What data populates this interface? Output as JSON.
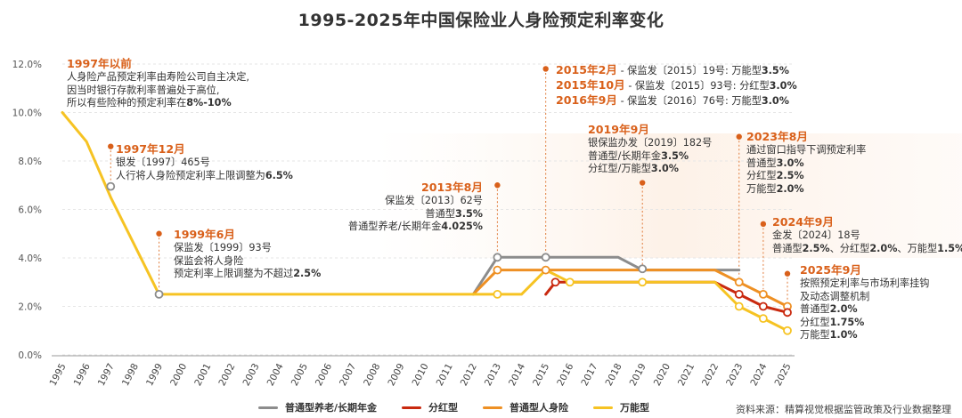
{
  "chart_data": {
    "type": "line",
    "title": "1995-2025年中国保险业人身险预定利率变化",
    "x": [
      "1995",
      "1996",
      "1997",
      "1998",
      "1999",
      "2000",
      "2001",
      "2002",
      "2003",
      "2004",
      "2005",
      "2006",
      "2007",
      "2008",
      "2009",
      "2010",
      "2011",
      "2012",
      "2013",
      "2014",
      "2015",
      "2016",
      "2017",
      "2018",
      "2019",
      "2020",
      "2021",
      "2022",
      "2023",
      "2024",
      "2025"
    ],
    "y_ticks": [
      "0.0%",
      "2.0%",
      "4.0%",
      "6.0%",
      "8.0%",
      "10.0%",
      "12.0%"
    ],
    "ylim": [
      0,
      12
    ],
    "series": [
      {
        "name": "普通型养老/长期年金",
        "color": "#8c8c8c",
        "points": [
          [
            2012,
            2.5
          ],
          [
            2013,
            4.025
          ],
          [
            2015,
            4.025
          ],
          [
            2018,
            4.025
          ],
          [
            2019,
            3.5
          ],
          [
            2022,
            3.5
          ],
          [
            2023,
            3.5
          ]
        ]
      },
      {
        "name": "分红型",
        "color": "#c9290f",
        "points": [
          [
            2015,
            2.5
          ],
          [
            2015.4,
            3.0
          ],
          [
            2016,
            3.0
          ],
          [
            2019,
            3.0
          ],
          [
            2022,
            3.0
          ],
          [
            2023,
            2.5
          ],
          [
            2024,
            2.0
          ],
          [
            2025,
            1.75
          ]
        ]
      },
      {
        "name": "普通型人身险",
        "color": "#ee9024",
        "points": [
          [
            2012,
            2.5
          ],
          [
            2013,
            3.5
          ],
          [
            2015,
            3.5
          ],
          [
            2022,
            3.5
          ],
          [
            2023,
            3.0
          ],
          [
            2024,
            2.5
          ],
          [
            2025,
            2.0
          ]
        ]
      },
      {
        "name": "万能型",
        "color": "#f6c323",
        "points": [
          [
            1995,
            10.0
          ],
          [
            1996,
            8.8
          ],
          [
            1997,
            6.5
          ],
          [
            1999,
            2.5
          ],
          [
            2012,
            2.5
          ],
          [
            2013,
            2.5
          ],
          [
            2014,
            2.5
          ],
          [
            2015,
            3.5
          ],
          [
            2016,
            3.0
          ],
          [
            2019,
            3.0
          ],
          [
            2022,
            3.0
          ],
          [
            2023,
            2.0
          ],
          [
            2024,
            1.5
          ],
          [
            2025,
            1.0
          ]
        ]
      }
    ],
    "markers": [
      {
        "x": 1997,
        "y": 6.95,
        "color": "#8c8c8c"
      },
      {
        "x": 1999,
        "y": 2.5,
        "color": "#8c8c8c"
      },
      {
        "x": 2013,
        "y": 4.025,
        "color": "#8c8c8c"
      },
      {
        "x": 2015,
        "y": 4.025,
        "color": "#8c8c8c"
      },
      {
        "x": 2019,
        "y": 3.55,
        "color": "#8c8c8c"
      },
      {
        "x": 2013,
        "y": 3.5,
        "color": "#ee9024"
      },
      {
        "x": 2015,
        "y": 3.5,
        "color": "#ee9024"
      },
      {
        "x": 2023,
        "y": 3.0,
        "color": "#ee9024"
      },
      {
        "x": 2024,
        "y": 2.5,
        "color": "#ee9024"
      },
      {
        "x": 2025,
        "y": 2.0,
        "color": "#ee9024"
      },
      {
        "x": 2015.4,
        "y": 3.0,
        "color": "#c9290f"
      },
      {
        "x": 2023,
        "y": 2.5,
        "color": "#c9290f"
      },
      {
        "x": 2024,
        "y": 2.0,
        "color": "#c9290f"
      },
      {
        "x": 2025,
        "y": 1.75,
        "color": "#c9290f"
      },
      {
        "x": 2013,
        "y": 2.5,
        "color": "#f6c323"
      },
      {
        "x": 2016,
        "y": 3.0,
        "color": "#f6c323"
      },
      {
        "x": 2019,
        "y": 3.0,
        "color": "#f6c323"
      },
      {
        "x": 2023,
        "y": 2.0,
        "color": "#f6c323"
      },
      {
        "x": 2024,
        "y": 1.5,
        "color": "#f6c323"
      },
      {
        "x": 2025,
        "y": 1.0,
        "color": "#f6c323"
      }
    ],
    "event_pins": [
      {
        "x": 1997,
        "y_top": 8.6,
        "y_bottom": 7.1
      },
      {
        "x": 1999,
        "y_top": 5.0,
        "y_bottom": 2.7
      },
      {
        "x": 2013,
        "y_top": 7.0,
        "y_bottom": 4.2
      },
      {
        "x": 2015,
        "y_top": 11.8,
        "y_bottom": 4.2
      },
      {
        "x": 2019,
        "y_top": 7.1,
        "y_bottom": 3.7
      },
      {
        "x": 2023,
        "y_top": 9.0,
        "y_bottom": 3.2
      },
      {
        "x": 2024,
        "y_top": 5.4,
        "y_bottom": 2.7
      },
      {
        "x": 2025,
        "y_top": 3.35,
        "y_bottom": 2.2
      }
    ],
    "annotations": [
      {
        "id": "a1997",
        "heading": "1997年以前",
        "lines": [
          [
            "人身险产品预定利率由寿险公司自主决定,"
          ],
          [
            "因当时银行存款利率普遍处于高位,"
          ],
          [
            "所以有些险种的预定利率在",
            "8%-10%"
          ]
        ]
      },
      {
        "id": "a1997b",
        "heading": "1997年12月",
        "lines": [
          [
            "银发〔1997〕465号"
          ],
          [
            "人行将人身险预定利率上限调整为",
            "6.5%"
          ]
        ]
      },
      {
        "id": "a1999",
        "heading": "1999年6月",
        "lines": [
          [
            "保监发〔1999〕93号"
          ],
          [
            "保监会将人身险"
          ],
          [
            "预定利率上限调整为不超过",
            "2.5%"
          ]
        ]
      },
      {
        "id": "a2013",
        "heading": "2013年8月",
        "lines": [
          [
            "保监发〔2013〕62号"
          ],
          [
            "普通型",
            "3.5%"
          ],
          [
            "普通型养老/长期年金",
            "4.025%"
          ]
        ]
      },
      {
        "id": "a2015",
        "rows": [
          {
            "heading": "2015年2月",
            "text": " - 保监发〔2015〕19号: 万能型",
            "bold": "3.5%"
          },
          {
            "heading": "2015年10月",
            "text": " - 保监发〔2015〕93号: 分红型",
            "bold": "3.0%"
          },
          {
            "heading": "2016年9月",
            "text": " - 保监发〔2016〕76号: 万能型",
            "bold": "3.0%"
          }
        ]
      },
      {
        "id": "a2019",
        "heading": "2019年9月",
        "lines": [
          [
            "银保监办发〔2019〕182号"
          ],
          [
            "普通型/长期年金",
            "3.5%"
          ],
          [
            "分红型/万能型",
            "3.0%"
          ]
        ]
      },
      {
        "id": "a2023",
        "heading": "2023年8月",
        "lines": [
          [
            "通过窗口指导下调预定利率"
          ],
          [
            "普通型",
            "3.0%"
          ],
          [
            "分红型",
            "2.5%"
          ],
          [
            "万能型",
            "2.0%"
          ]
        ]
      },
      {
        "id": "a2024",
        "heading": "2024年9月",
        "lines": [
          [
            "金发〔2024〕18号"
          ],
          [
            "普通型",
            "2.5%",
            "、分红型",
            "2.0%",
            "、万能型",
            "1.5%"
          ]
        ]
      },
      {
        "id": "a2025",
        "heading": "2025年9月",
        "lines": [
          [
            "按照预定利率与市场利率挂钩"
          ],
          [
            "及动态调整机制"
          ],
          [
            "普通型",
            "2.0%"
          ],
          [
            "分红型",
            "1.75%"
          ],
          [
            "万能型",
            "1.0%"
          ]
        ]
      }
    ],
    "legend": [
      "普通型养老/长期年金",
      "分红型",
      "普通型人身险",
      "万能型"
    ],
    "source": "资料来源：精算视觉根据监管政策及行业数据整理"
  }
}
